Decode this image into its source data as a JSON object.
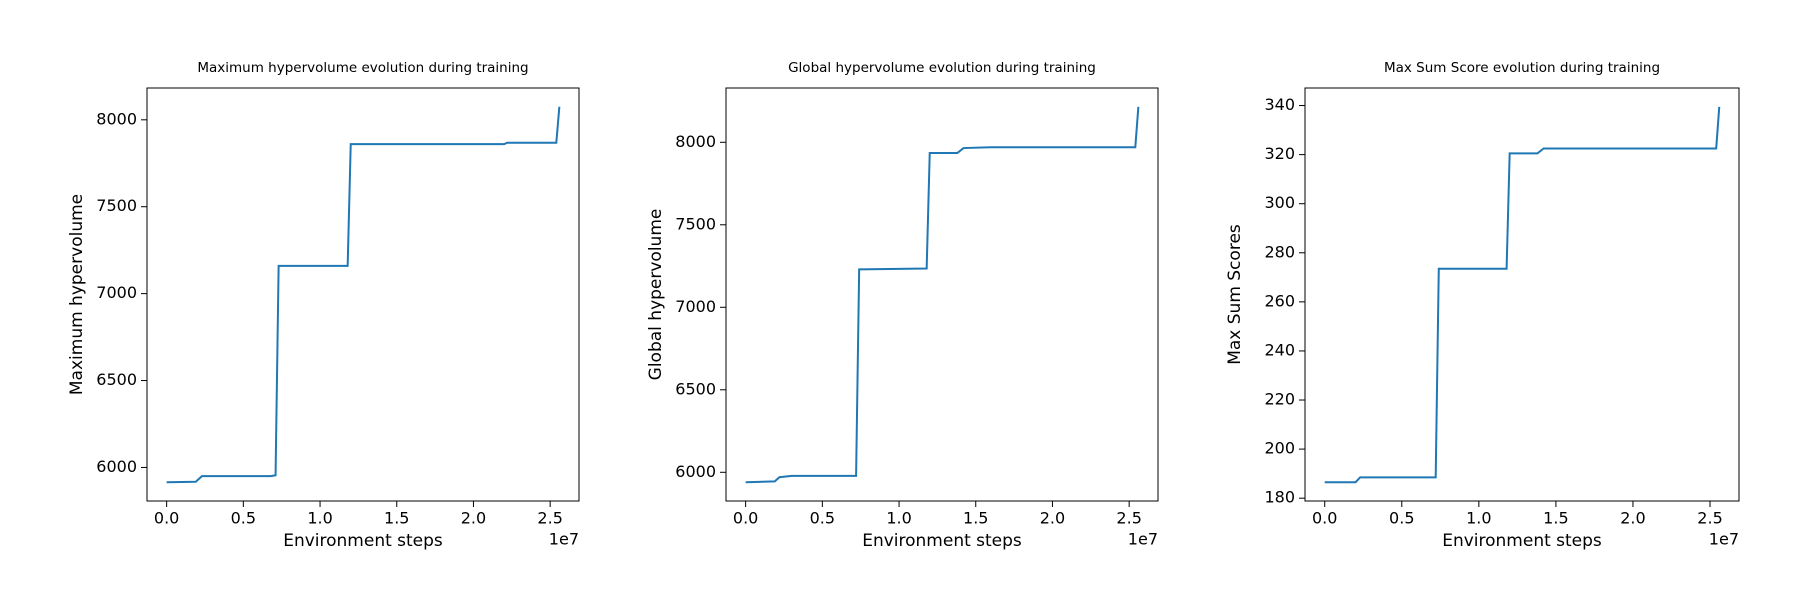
{
  "chart_data": [
    {
      "type": "line",
      "title": "Maximum hypervolume evolution during training",
      "x_label": "Environment steps",
      "y_label": "Maximum hypervolume",
      "x_offset_label": "1e7",
      "x": [
        0,
        1900000,
        2300000,
        6800000,
        7100000,
        7300000,
        11800000,
        12000000,
        22000000,
        22200000,
        25400000,
        25600000
      ],
      "series": [
        {
          "name": "Maximum hypervolume",
          "color": "#1f77b4",
          "values": [
            5915,
            5918,
            5950,
            5950,
            5955,
            7160,
            7160,
            7860,
            7860,
            7868,
            7868,
            8075
          ]
        }
      ],
      "xlim": [
        -1280000,
        26880000
      ],
      "ylim": [
        5807,
        8183
      ],
      "xticks": [
        {
          "value": 0,
          "label": "0.0"
        },
        {
          "value": 5000000,
          "label": "0.5"
        },
        {
          "value": 10000000,
          "label": "1.0"
        },
        {
          "value": 15000000,
          "label": "1.5"
        },
        {
          "value": 20000000,
          "label": "2.0"
        },
        {
          "value": 25000000,
          "label": "2.5"
        }
      ],
      "yticks": [
        6000,
        6500,
        7000,
        7500,
        8000
      ]
    },
    {
      "type": "line",
      "title": "Global hypervolume evolution during training",
      "x_label": "Environment steps",
      "y_label": "Global hypervolume",
      "x_offset_label": "1e7",
      "x": [
        0,
        1900000,
        2200000,
        3000000,
        7200000,
        7400000,
        11800000,
        12000000,
        13800000,
        14200000,
        16000000,
        25400000,
        25600000
      ],
      "series": [
        {
          "name": "Global hypervolume",
          "color": "#1f77b4",
          "values": [
            5940,
            5945,
            5970,
            5978,
            5978,
            7230,
            7235,
            7935,
            7935,
            7965,
            7970,
            7970,
            8215
          ]
        }
      ],
      "xlim": [
        -1280000,
        26880000
      ],
      "ylim": [
        5826,
        8329
      ],
      "xticks": [
        {
          "value": 0,
          "label": "0.0"
        },
        {
          "value": 5000000,
          "label": "0.5"
        },
        {
          "value": 10000000,
          "label": "1.0"
        },
        {
          "value": 15000000,
          "label": "1.5"
        },
        {
          "value": 20000000,
          "label": "2.0"
        },
        {
          "value": 25000000,
          "label": "2.5"
        }
      ],
      "yticks": [
        6000,
        6500,
        7000,
        7500,
        8000
      ]
    },
    {
      "type": "line",
      "title": "Max Sum Score evolution during training",
      "x_label": "Environment steps",
      "y_label": "Max Sum Scores",
      "x_offset_label": "1e7",
      "x": [
        0,
        2000000,
        2300000,
        7200000,
        7400000,
        11800000,
        12000000,
        13800000,
        14200000,
        25400000,
        25600000
      ],
      "series": [
        {
          "name": "Max Sum Scores",
          "color": "#1f77b4",
          "values": [
            186.5,
            186.5,
            188.5,
            188.5,
            273.5,
            273.5,
            320.5,
            320.5,
            322.5,
            322.5,
            339.5
          ]
        }
      ],
      "xlim": [
        -1280000,
        26880000
      ],
      "ylim": [
        178.85,
        347.15
      ],
      "xticks": [
        {
          "value": 0,
          "label": "0.0"
        },
        {
          "value": 5000000,
          "label": "0.5"
        },
        {
          "value": 10000000,
          "label": "1.0"
        },
        {
          "value": 15000000,
          "label": "1.5"
        },
        {
          "value": 20000000,
          "label": "2.0"
        },
        {
          "value": 25000000,
          "label": "2.5"
        }
      ],
      "yticks": [
        180,
        200,
        220,
        240,
        260,
        280,
        300,
        320,
        340
      ]
    }
  ]
}
